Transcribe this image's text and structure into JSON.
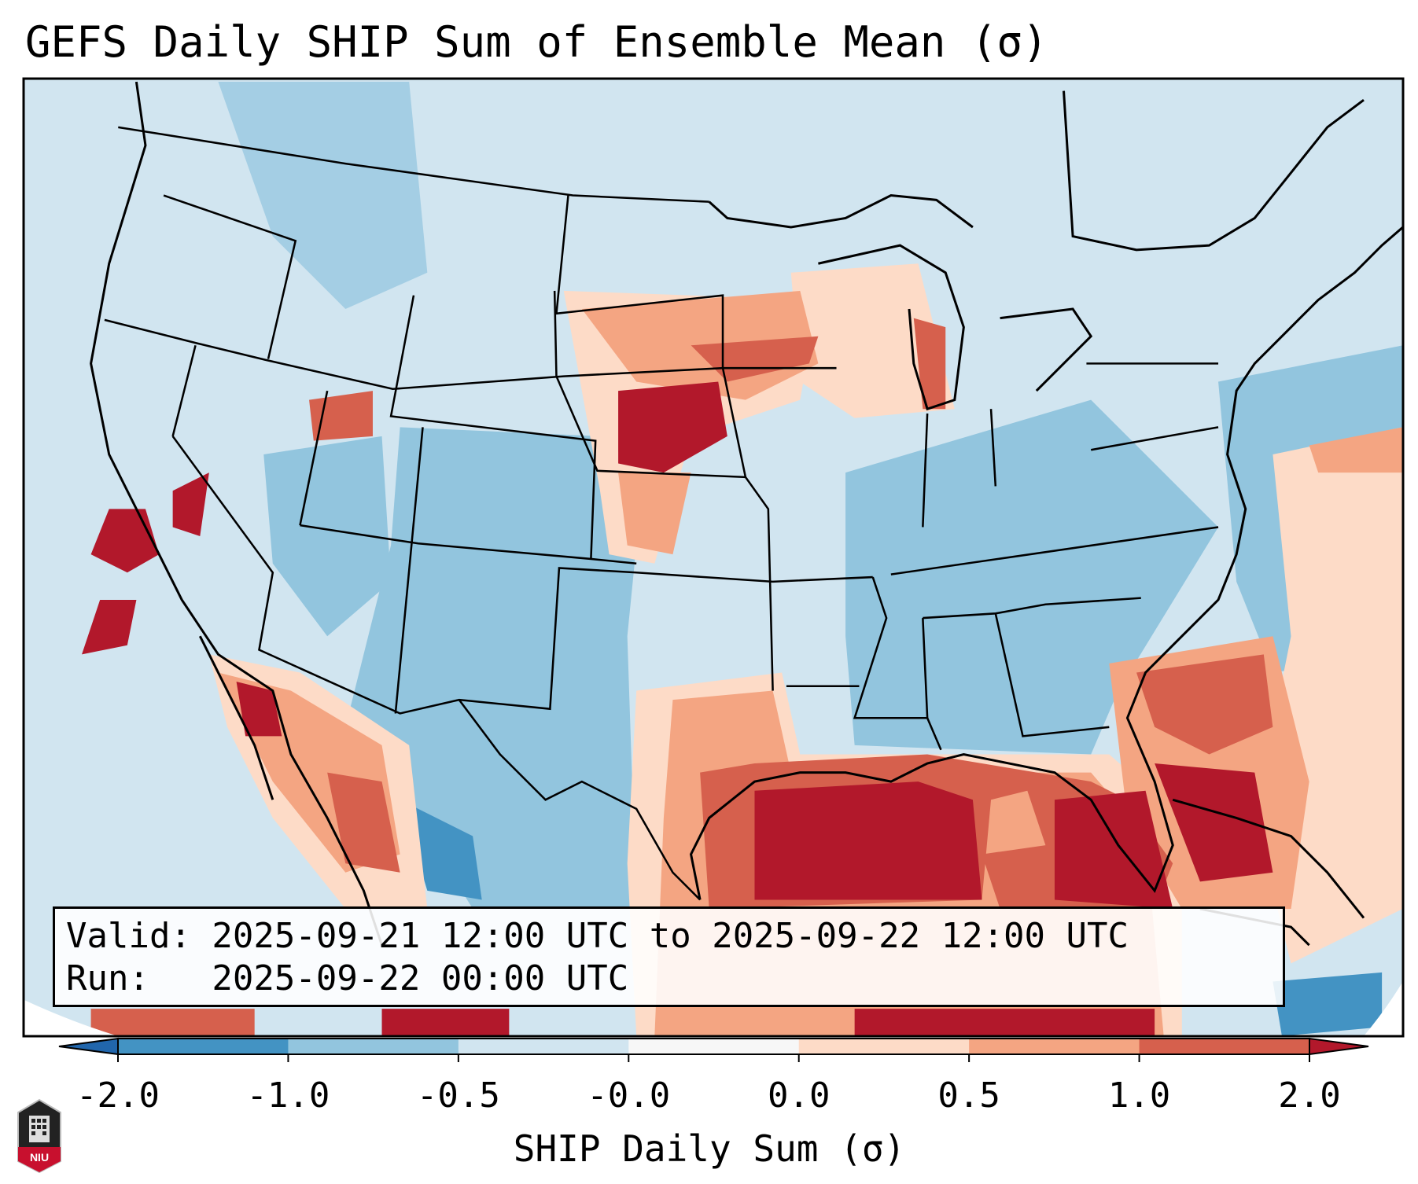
{
  "title": "GEFS Daily SHIP Sum of Ensemble Mean (σ)",
  "annotation": {
    "valid_line": "Valid: 2025-09-21 12:00 UTC to 2025-09-22 12:00 UTC",
    "run_line": "Run:   2025-09-22 00:00 UTC"
  },
  "colorbar": {
    "label": "SHIP Daily Sum (σ)",
    "ticks": [
      "-2.0",
      "-1.0",
      "-0.5",
      "-0.0",
      "0.0",
      "0.5",
      "1.0",
      "2.0"
    ],
    "colors": [
      "#4393c3",
      "#92c5de",
      "#d1e5f0",
      "#f7f7f7",
      "#fddbc7",
      "#f4a582",
      "#d6604d"
    ],
    "extend_low_color": "#2166ac",
    "extend_high_color": "#b2182b"
  },
  "logo": {
    "text": "NIU"
  }
}
